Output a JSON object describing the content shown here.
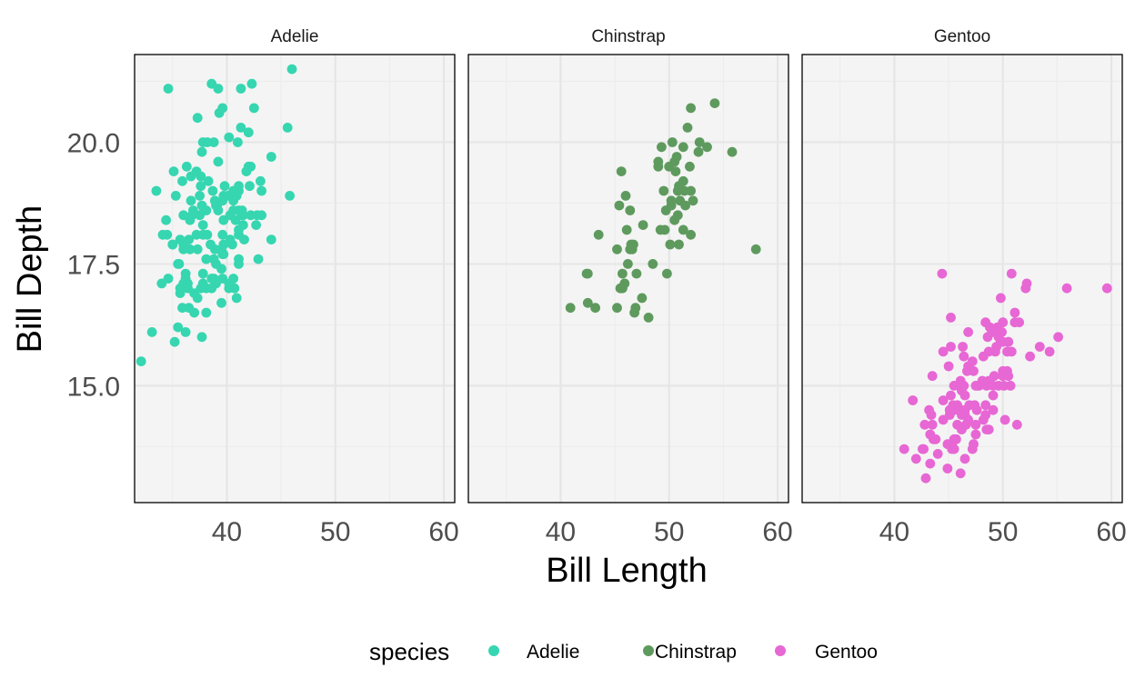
{
  "chart_data": {
    "type": "scatter",
    "facet_by": "species",
    "xlabel": "Bill Length",
    "ylabel": "Bill Depth",
    "xlim": [
      31.5,
      61.0
    ],
    "ylim": [
      12.6,
      21.8
    ],
    "x_ticks": [
      40,
      50,
      60
    ],
    "y_ticks": [
      15.0,
      17.5,
      20.0
    ],
    "y_tick_labels": [
      "15.0",
      "17.5",
      "20.0"
    ],
    "x_tick_labels": [
      "40",
      "50",
      "60"
    ],
    "grid": true,
    "legend": {
      "title": "species",
      "position": "bottom",
      "entries": [
        "Adelie",
        "Chinstrap",
        "Gentoo"
      ]
    },
    "colors": {
      "Adelie": "#36d6b0",
      "Chinstrap": "#5e9a5e",
      "Gentoo": "#e767d4",
      "panel_background": "#f4f4f4",
      "grid": "#e6e6e6"
    },
    "series": [
      {
        "name": "Adelie",
        "x": [
          39.1,
          39.5,
          40.3,
          36.7,
          39.3,
          38.9,
          39.2,
          34.1,
          42.0,
          37.8,
          37.8,
          41.1,
          38.6,
          34.6,
          36.6,
          38.7,
          42.5,
          34.4,
          46.0,
          37.8,
          37.7,
          35.9,
          38.2,
          38.8,
          35.3,
          40.6,
          40.5,
          37.9,
          40.5,
          39.5,
          37.2,
          39.5,
          40.9,
          36.4,
          39.2,
          38.8,
          42.2,
          37.6,
          39.8,
          36.5,
          40.8,
          36.0,
          44.1,
          37.0,
          39.6,
          41.1,
          37.5,
          36.0,
          42.3,
          39.6,
          40.1,
          35.0,
          42.0,
          34.5,
          41.4,
          39.0,
          40.6,
          36.5,
          37.6,
          35.7,
          41.3,
          37.6,
          41.1,
          36.4,
          41.6,
          35.5,
          41.1,
          35.9,
          41.8,
          33.5,
          39.7,
          39.6,
          45.8,
          35.5,
          42.8,
          40.9,
          37.2,
          36.2,
          42.1,
          34.6,
          42.9,
          36.7,
          35.1,
          37.3,
          41.3,
          36.3,
          36.9,
          38.3,
          38.9,
          35.7,
          41.1,
          34.0,
          39.6,
          36.2,
          40.8,
          38.1,
          40.3,
          33.1,
          43.2,
          35.0,
          41.0,
          37.7,
          37.8,
          37.9,
          39.7,
          38.6,
          38.2,
          38.1,
          43.2,
          38.1,
          45.6,
          39.7,
          42.2,
          39.6,
          42.7,
          38.6,
          37.3,
          35.7,
          41.1,
          36.2,
          37.7,
          40.2,
          41.4,
          35.2,
          40.6,
          38.8,
          41.5,
          39.0,
          44.1,
          38.5,
          43.1,
          36.8,
          37.5,
          38.1,
          41.1,
          35.6,
          40.2,
          37.0,
          39.7,
          40.2,
          40.6,
          32.1,
          40.7,
          37.3,
          39.0,
          39.2,
          36.6,
          36.0,
          37.8,
          36.0,
          41.5
        ],
        "y": [
          18.7,
          17.4,
          18.0,
          19.3,
          20.6,
          17.8,
          19.6,
          18.1,
          20.2,
          17.1,
          17.3,
          17.6,
          21.2,
          21.1,
          17.8,
          19.0,
          20.7,
          18.4,
          21.5,
          18.3,
          18.7,
          19.2,
          18.1,
          17.2,
          18.9,
          18.6,
          17.9,
          18.6,
          18.9,
          16.7,
          18.1,
          17.8,
          18.9,
          17.0,
          21.1,
          20.0,
          18.5,
          19.3,
          19.1,
          18.0,
          18.4,
          18.5,
          19.7,
          16.9,
          18.8,
          19.0,
          18.9,
          17.9,
          21.2,
          17.7,
          18.9,
          17.9,
          19.5,
          18.1,
          18.6,
          17.5,
          18.8,
          16.6,
          19.1,
          16.9,
          21.1,
          17.0,
          18.2,
          17.1,
          18.0,
          16.2,
          19.1,
          16.6,
          19.4,
          19.0,
          18.4,
          17.2,
          18.9,
          17.5,
          18.5,
          16.8,
          19.4,
          16.1,
          19.1,
          17.2,
          17.6,
          18.8,
          19.4,
          17.8,
          20.3,
          19.5,
          18.6,
          19.2,
          18.8,
          18.0,
          18.1,
          17.1,
          18.1,
          17.3,
          18.9,
          18.6,
          18.5,
          16.1,
          18.5,
          17.9,
          20.0,
          16.0,
          20.0,
          18.6,
          18.9,
          17.2,
          20.0,
          17.0,
          19.0,
          16.5,
          20.3,
          17.7,
          19.5,
          20.7,
          18.3,
          17.0,
          20.5,
          17.0,
          18.6,
          17.2,
          19.8,
          17.0,
          18.5,
          15.9,
          19.0,
          17.6,
          18.3,
          17.1,
          18.0,
          17.9,
          19.2,
          18.5,
          18.5,
          17.6,
          17.5,
          17.5,
          20.1,
          16.5,
          17.9,
          17.1,
          17.2,
          15.5,
          17.0,
          16.8,
          18.7,
          18.6,
          18.4,
          17.8,
          18.1,
          17.1,
          18.5
        ]
      },
      {
        "name": "Chinstrap",
        "x": [
          46.5,
          50.0,
          51.3,
          45.4,
          52.7,
          45.2,
          46.1,
          51.3,
          46.0,
          51.3,
          46.6,
          51.7,
          47.0,
          52.0,
          45.9,
          50.5,
          50.3,
          58.0,
          46.4,
          49.2,
          42.4,
          48.5,
          43.2,
          50.6,
          46.7,
          52.0,
          50.5,
          49.5,
          46.4,
          52.8,
          40.9,
          54.2,
          42.5,
          51.0,
          49.7,
          47.5,
          47.6,
          52.0,
          46.9,
          53.5,
          49.0,
          46.2,
          50.9,
          45.5,
          50.9,
          50.8,
          50.1,
          49.0,
          51.5,
          49.8,
          48.1,
          51.4,
          45.7,
          50.7,
          42.5,
          52.2,
          45.2,
          49.3,
          50.2,
          45.6,
          51.9,
          46.8,
          45.7,
          55.8,
          43.5,
          49.6,
          50.8,
          50.2
        ],
        "y": [
          17.9,
          19.5,
          19.2,
          18.7,
          19.8,
          17.8,
          18.2,
          18.2,
          18.9,
          19.9,
          17.8,
          20.3,
          17.3,
          18.1,
          17.1,
          19.6,
          20.0,
          17.8,
          18.6,
          18.2,
          17.3,
          17.5,
          16.6,
          19.4,
          17.9,
          19.0,
          18.4,
          19.0,
          17.8,
          20.0,
          16.6,
          20.8,
          16.7,
          18.8,
          18.6,
          16.8,
          18.3,
          20.7,
          16.6,
          19.9,
          19.5,
          17.5,
          19.1,
          17.0,
          17.9,
          18.5,
          17.9,
          19.6,
          18.7,
          17.3,
          16.4,
          19.0,
          17.3,
          19.7,
          17.3,
          18.8,
          16.6,
          19.9,
          18.8,
          19.4,
          19.5,
          16.5,
          17.0,
          19.8,
          18.1,
          18.2,
          19.0,
          18.7
        ]
      },
      {
        "name": "Gentoo",
        "x": [
          46.1,
          50.0,
          48.7,
          50.0,
          47.6,
          46.5,
          45.4,
          46.7,
          43.3,
          46.8,
          40.9,
          49.0,
          45.5,
          48.4,
          45.8,
          49.3,
          42.0,
          49.2,
          46.2,
          48.7,
          50.2,
          45.1,
          46.5,
          46.3,
          42.9,
          46.1,
          44.5,
          47.8,
          48.2,
          50.0,
          47.3,
          42.8,
          45.1,
          59.6,
          49.1,
          48.4,
          42.6,
          44.4,
          44.0,
          48.7,
          42.7,
          49.6,
          45.3,
          49.6,
          50.5,
          43.6,
          45.5,
          50.5,
          44.9,
          45.2,
          46.6,
          48.5,
          45.1,
          50.1,
          46.5,
          45.0,
          43.8,
          45.5,
          43.2,
          50.4,
          45.3,
          46.2,
          45.7,
          54.3,
          45.8,
          49.8,
          46.2,
          49.5,
          43.5,
          50.7,
          47.7,
          46.4,
          48.2,
          46.5,
          46.4,
          48.6,
          47.5,
          51.1,
          45.2,
          45.2,
          49.1,
          52.5,
          47.4,
          50.0,
          44.9,
          50.8,
          43.4,
          51.3,
          47.5,
          52.1,
          47.5,
          52.2,
          45.5,
          49.5,
          44.5,
          50.8,
          49.4,
          46.9,
          48.4,
          51.1,
          48.5,
          55.9,
          47.2,
          49.1,
          47.3,
          46.8,
          41.7,
          53.4,
          43.3,
          48.1,
          50.5,
          49.8,
          43.5,
          51.5,
          46.2,
          55.1,
          44.5,
          48.8,
          47.2,
          46.8,
          50.4,
          45.2,
          49.9
        ],
        "y": [
          13.2,
          16.3,
          14.1,
          15.2,
          14.5,
          13.5,
          14.6,
          15.3,
          13.4,
          15.4,
          13.7,
          16.1,
          13.7,
          14.6,
          14.6,
          15.7,
          13.5,
          15.2,
          14.5,
          15.1,
          14.3,
          14.5,
          14.5,
          15.8,
          13.1,
          15.1,
          14.3,
          15.0,
          14.3,
          15.3,
          15.3,
          14.2,
          14.5,
          17.0,
          14.8,
          16.3,
          13.7,
          17.3,
          13.6,
          15.7,
          13.7,
          16.0,
          13.7,
          15.0,
          15.9,
          13.9,
          13.9,
          15.9,
          13.3,
          15.8,
          14.2,
          14.1,
          14.4,
          15.0,
          14.4,
          15.4,
          13.9,
          15.0,
          14.5,
          15.3,
          13.8,
          14.9,
          13.9,
          15.7,
          14.2,
          16.8,
          14.4,
          16.2,
          14.2,
          15.0,
          15.0,
          15.6,
          15.6,
          14.8,
          15.0,
          16.0,
          14.2,
          16.3,
          13.8,
          16.4,
          14.5,
          15.6,
          14.6,
          15.9,
          13.8,
          17.3,
          14.4,
          14.2,
          14.0,
          17.0,
          15.0,
          17.1,
          14.5,
          16.1,
          14.7,
          15.7,
          15.8,
          14.6,
          14.4,
          16.5,
          15.0,
          17.0,
          15.5,
          15.0,
          13.8,
          16.1,
          14.7,
          15.8,
          14.0,
          15.1,
          15.2,
          15.9,
          15.2,
          16.3,
          14.1,
          16.0,
          15.7,
          16.2,
          13.7,
          14.3,
          15.7,
          14.8,
          16.1
        ]
      }
    ]
  }
}
